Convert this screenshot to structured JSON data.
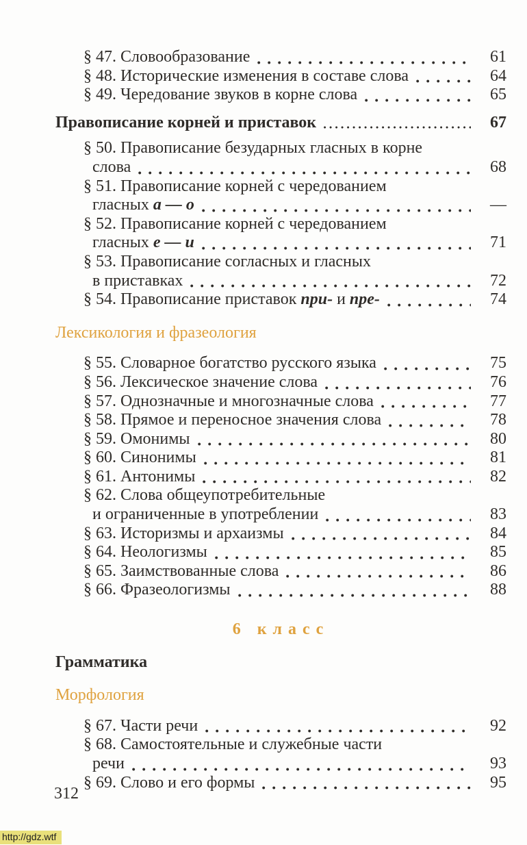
{
  "colors": {
    "accent": "#dfa23f",
    "ink": "#2f2c29",
    "watermark_bg": "#e9e07b",
    "paper": "#fdfdfc"
  },
  "footer": {
    "folio": "312"
  },
  "watermark": {
    "label": "http://gdz.wtf"
  },
  "toc_blocks": [
    {
      "type": "entries",
      "items": [
        {
          "lines": [
            [
              {
                "t": "§ 47. Словообразование"
              }
            ]
          ],
          "page": "61"
        },
        {
          "lines": [
            [
              {
                "t": "§ 48. Исторические изменения в составе слова"
              }
            ]
          ],
          "page": "64"
        },
        {
          "lines": [
            [
              {
                "t": "§ 49. Чередование звуков в корне слова"
              }
            ]
          ],
          "page": "65"
        }
      ]
    },
    {
      "type": "section",
      "label": "Правописание корней и приставок",
      "page": "67"
    },
    {
      "type": "entries",
      "items": [
        {
          "lines": [
            [
              {
                "t": "§ 50. Правописание безударных гласных в корне"
              }
            ],
            [
              {
                "t": "слова"
              }
            ]
          ],
          "page": "68"
        },
        {
          "lines": [
            [
              {
                "t": "§ 51. Правописание корней с чередованием"
              }
            ],
            [
              {
                "t": "гласных "
              },
              {
                "t": "а — о",
                "em": true
              }
            ]
          ],
          "page": "—"
        },
        {
          "lines": [
            [
              {
                "t": "§ 52. Правописание корней с чередованием"
              }
            ],
            [
              {
                "t": "гласных "
              },
              {
                "t": "е — и",
                "em": true
              }
            ]
          ],
          "page": "71"
        },
        {
          "lines": [
            [
              {
                "t": "§ 53. Правописание согласных и гласных"
              }
            ],
            [
              {
                "t": "в приставках"
              }
            ]
          ],
          "page": "72"
        },
        {
          "lines": [
            [
              {
                "t": "§ 54. Правописание приставок "
              },
              {
                "t": "при-",
                "em": true
              },
              {
                "t": " и "
              },
              {
                "t": "пре-",
                "em": true
              }
            ]
          ],
          "page": "74"
        }
      ]
    },
    {
      "type": "accent",
      "label": "Лексикология и фразеология"
    },
    {
      "type": "entries",
      "items": [
        {
          "lines": [
            [
              {
                "t": "§ 55. Словарное богатство русского языка"
              }
            ]
          ],
          "page": "75"
        },
        {
          "lines": [
            [
              {
                "t": "§ 56. Лексическое значение слова"
              }
            ]
          ],
          "page": "76"
        },
        {
          "lines": [
            [
              {
                "t": "§ 57. Однозначные и многозначные слова"
              }
            ]
          ],
          "page": "77"
        },
        {
          "lines": [
            [
              {
                "t": "§ 58. Прямое и переносное значения слова"
              }
            ]
          ],
          "page": "78"
        },
        {
          "lines": [
            [
              {
                "t": "§ 59. Омонимы"
              }
            ]
          ],
          "page": "80"
        },
        {
          "lines": [
            [
              {
                "t": "§ 60. Синонимы"
              }
            ]
          ],
          "page": "81"
        },
        {
          "lines": [
            [
              {
                "t": "§ 61. Антонимы"
              }
            ]
          ],
          "page": "82"
        },
        {
          "lines": [
            [
              {
                "t": "§ 62. Слова общеупотребительные"
              }
            ],
            [
              {
                "t": "и ограниченные в употреблении"
              }
            ]
          ],
          "page": "83"
        },
        {
          "lines": [
            [
              {
                "t": "§ 63. Историзмы и архаизмы"
              }
            ]
          ],
          "page": "84"
        },
        {
          "lines": [
            [
              {
                "t": "§ 64. Неологизмы"
              }
            ]
          ],
          "page": "85"
        },
        {
          "lines": [
            [
              {
                "t": "§ 65. Заимствованные слова"
              }
            ]
          ],
          "page": "86"
        },
        {
          "lines": [
            [
              {
                "t": "§ 66. Фразеологизмы"
              }
            ]
          ],
          "page": "88"
        }
      ]
    },
    {
      "type": "center",
      "label": "6 класс"
    },
    {
      "type": "black",
      "label": "Грамматика"
    },
    {
      "type": "accent",
      "label": "Морфология"
    },
    {
      "type": "entries",
      "items": [
        {
          "lines": [
            [
              {
                "t": "§ 67. Части речи"
              }
            ]
          ],
          "page": "92"
        },
        {
          "lines": [
            [
              {
                "t": "§ 68. Самостоятельные и служебные части"
              }
            ],
            [
              {
                "t": "речи"
              }
            ]
          ],
          "page": "93"
        },
        {
          "lines": [
            [
              {
                "t": "§ 69. Слово и его формы"
              }
            ]
          ],
          "page": "95"
        }
      ]
    }
  ]
}
